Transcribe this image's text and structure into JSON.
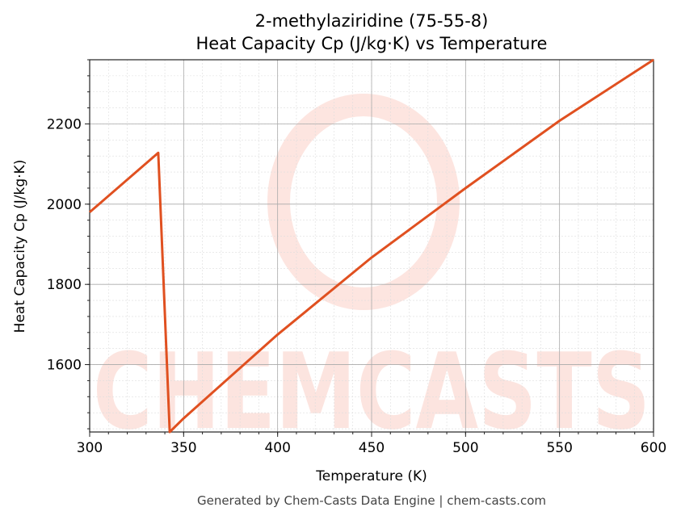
{
  "chart_data": {
    "type": "line",
    "title": "2-methylaziridine (75-55-8)",
    "subtitle": "Heat Capacity Cp (J/kg·K) vs Temperature",
    "xlabel": "Temperature (K)",
    "ylabel": "Heat Capacity Cp (J/kg·K)",
    "xlim": [
      300,
      600
    ],
    "ylim": [
      1432,
      2360
    ],
    "xticks": [
      300,
      350,
      400,
      450,
      500,
      550,
      600
    ],
    "yticks": [
      1600,
      1800,
      2000,
      2200
    ],
    "grid": true,
    "line_color": "#e05020",
    "series": [
      {
        "x": [
          300,
          336.5,
          342.6,
          350,
          400,
          450,
          500,
          550,
          600
        ],
        "y": [
          1980,
          2128,
          1432,
          1466,
          1675,
          1867,
          2040,
          2208,
          2360
        ]
      }
    ]
  },
  "footer": "Generated by Chem-Casts Data Engine | chem-casts.com",
  "watermark": "CHEMCASTS"
}
